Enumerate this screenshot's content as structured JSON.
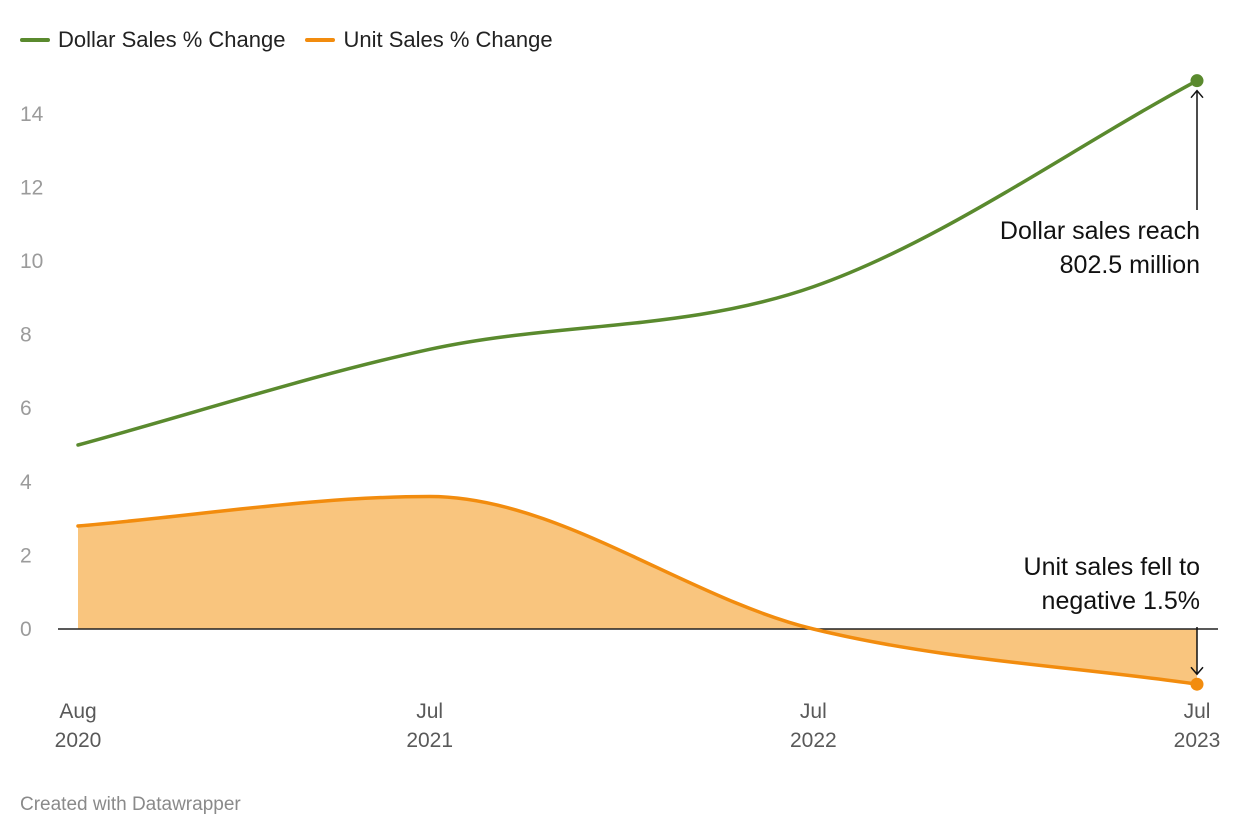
{
  "legend": {
    "dollar_label": "Dollar Sales % Change",
    "unit_label": "Unit Sales % Change"
  },
  "colors": {
    "dollar": "#5a8a2e",
    "unit": "#f28c0e",
    "unit_fill": "#f9c57e",
    "zero_line": "#222222",
    "grid_label": "#9b9b9b"
  },
  "chart_data": {
    "type": "line",
    "x": [
      "2020-08",
      "2021-07",
      "2022-07",
      "2023-07"
    ],
    "x_tick_labels": [
      [
        "Aug",
        "2020"
      ],
      [
        "Jul",
        "2021"
      ],
      [
        "Jul",
        "2022"
      ],
      [
        "Jul",
        "2023"
      ]
    ],
    "y_ticks": [
      0,
      2,
      4,
      6,
      8,
      10,
      12,
      14
    ],
    "ylim": [
      -1.5,
      15
    ],
    "grid": false,
    "legend_position": "top-left",
    "series": [
      {
        "name": "Dollar Sales % Change",
        "key": "dollar",
        "points": [
          {
            "x": "2020-08",
            "y": 5.0
          },
          {
            "x": "2021-07",
            "y": 7.6
          },
          {
            "x": "2022-07",
            "y": 9.3
          },
          {
            "x": "2023-07",
            "y": 14.9
          }
        ]
      },
      {
        "name": "Unit Sales % Change",
        "key": "unit",
        "area": true,
        "points": [
          {
            "x": "2020-08",
            "y": 2.8
          },
          {
            "x": "2021-07",
            "y": 3.6
          },
          {
            "x": "2022-07",
            "y": 0.0
          },
          {
            "x": "2023-07",
            "y": -1.5
          }
        ]
      }
    ],
    "annotations": [
      {
        "lines": [
          "Dollar sales reach",
          "802.5 million"
        ],
        "series": "dollar"
      },
      {
        "lines": [
          "Unit sales fell to",
          "negative 1.5%"
        ],
        "series": "unit"
      }
    ]
  },
  "footer": "Created with Datawrapper"
}
